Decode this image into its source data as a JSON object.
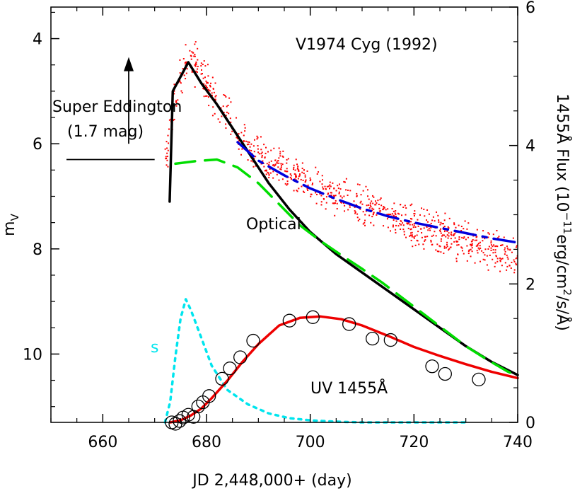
{
  "chart_data": {
    "type": "line",
    "title": "V1974 Cyg (1992)",
    "xlabel": "JD 2,448,000+ (day)",
    "ylabel_left": "m_V",
    "ylabel_right": "1455Å Flux (10^-11 erg/cm^2/s/Å)",
    "xlim": [
      650,
      740
    ],
    "ylim_left": [
      11.3,
      3.4
    ],
    "ylim_right": [
      0,
      6
    ],
    "x_ticks": [
      660,
      680,
      700,
      720,
      740
    ],
    "y_left_ticks": [
      4,
      6,
      8,
      10
    ],
    "y_right_ticks": [
      0,
      2,
      4,
      6
    ],
    "annotations": {
      "super_eddington_1": "Super Eddington",
      "super_eddington_2": "(1.7 mag)",
      "optical": "Optical",
      "uv": "UV 1455Å",
      "s": "s"
    },
    "series": [
      {
        "name": "Optical",
        "axis": "left",
        "style": "solid",
        "color": "#000000",
        "x": [
          672.9,
          673.5,
          676.5,
          679,
          682,
          685,
          688,
          692,
          696,
          700,
          705,
          710,
          715,
          720,
          725,
          730,
          735,
          740
        ],
        "y": [
          7.1,
          5.0,
          4.45,
          4.85,
          5.25,
          5.7,
          6.15,
          6.75,
          7.25,
          7.68,
          8.1,
          8.45,
          8.8,
          9.15,
          9.5,
          9.85,
          10.15,
          10.4
        ]
      },
      {
        "axis": "left",
        "style": "long-dash",
        "color": "#00dd00",
        "x": [
          674,
          678,
          682,
          686,
          690,
          694,
          698,
          702,
          706,
          710,
          714,
          718,
          722,
          726,
          730,
          734,
          738,
          740
        ],
        "y": [
          6.38,
          6.33,
          6.3,
          6.45,
          6.75,
          7.15,
          7.55,
          7.85,
          8.12,
          8.38,
          8.65,
          8.95,
          9.25,
          9.55,
          9.85,
          10.1,
          10.33,
          10.42
        ]
      },
      {
        "axis": "left",
        "style": "dash-dot",
        "color": "#0000dd",
        "x": [
          686,
          690,
          695,
          700,
          705,
          710,
          715,
          720,
          725,
          730,
          735,
          740
        ],
        "y": [
          5.97,
          6.32,
          6.6,
          6.85,
          7.05,
          7.23,
          7.38,
          7.5,
          7.6,
          7.7,
          7.8,
          7.88
        ]
      },
      {
        "axis": "right",
        "style": "dotted",
        "color": "#00e5ee",
        "x": [
          672,
          673,
          674,
          675,
          676,
          677,
          679,
          681,
          684,
          688,
          692,
          696,
          700,
          705,
          710,
          715,
          720,
          725,
          730
        ],
        "y": [
          0.0,
          0.3,
          0.95,
          1.5,
          1.78,
          1.62,
          1.22,
          0.82,
          0.47,
          0.26,
          0.13,
          0.06,
          0.03,
          0.01,
          0.0,
          0.0,
          0.0,
          0.0,
          0.0
        ]
      },
      {
        "name": "UV 1455Å",
        "axis": "right",
        "style": "solid",
        "color": "#ee0000",
        "x": [
          673,
          675,
          677,
          679,
          681,
          684,
          687,
          690,
          694,
          698,
          702,
          706,
          710,
          715,
          720,
          725,
          730,
          735,
          740
        ],
        "y": [
          0.0,
          0.03,
          0.1,
          0.2,
          0.35,
          0.6,
          0.88,
          1.13,
          1.4,
          1.51,
          1.53,
          1.49,
          1.4,
          1.25,
          1.09,
          0.96,
          0.84,
          0.73,
          0.64
        ]
      }
    ],
    "uv_observations": {
      "axis": "right",
      "marker": "open-circle",
      "x": [
        673.3,
        674.0,
        674.8,
        675.5,
        676.5,
        677.5,
        678.4,
        679.3,
        680.5,
        683.0,
        684.5,
        686.5,
        689.0,
        696.0,
        700.5,
        707.5,
        712.0,
        715.5,
        723.5,
        726.0,
        732.5
      ],
      "y": [
        0.0,
        -0.02,
        0.02,
        0.07,
        0.11,
        0.08,
        0.23,
        0.29,
        0.38,
        0.63,
        0.78,
        0.94,
        1.18,
        1.47,
        1.52,
        1.42,
        1.21,
        1.19,
        0.81,
        0.7,
        0.62
      ]
    },
    "optical_observations": {
      "axis": "left",
      "marker": "dot",
      "color": "#ff0000",
      "envelope_x": [
        672,
        674,
        676,
        678,
        680,
        683,
        686,
        690,
        695,
        700,
        705,
        710,
        715,
        720,
        725,
        730,
        735,
        740
      ],
      "envelope_center": [
        6.6,
        5.0,
        4.5,
        4.5,
        4.85,
        5.3,
        5.85,
        6.2,
        6.5,
        6.75,
        7.0,
        7.15,
        7.35,
        7.55,
        7.7,
        7.9,
        8.0,
        8.15
      ],
      "envelope_halfwidth": [
        0.5,
        0.5,
        0.5,
        0.5,
        0.45,
        0.45,
        0.45,
        0.4,
        0.4,
        0.4,
        0.4,
        0.45,
        0.45,
        0.45,
        0.45,
        0.45,
        0.45,
        0.45
      ]
    },
    "super_eddington": {
      "level_mag": 6.3,
      "arrow_x": 665,
      "arrow_from_mag": 6.0,
      "arrow_to_mag": 4.35,
      "line_x": [
        653,
        670
      ]
    }
  }
}
